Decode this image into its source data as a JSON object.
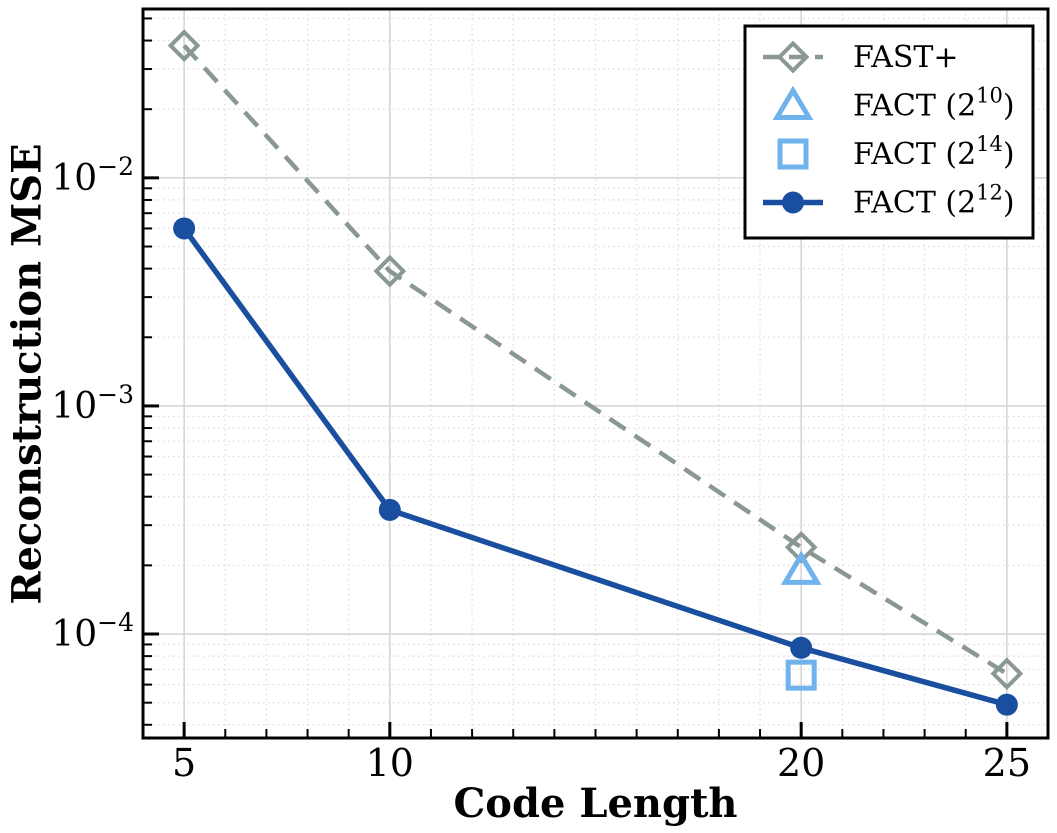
{
  "figure": {
    "background": "#ffffff",
    "frame_color": "#000000",
    "text_color": "#000000"
  },
  "chart_data": {
    "type": "line",
    "title": "",
    "xlabel": "Code Length",
    "ylabel": "Reconstruction MSE",
    "x_scale": "linear",
    "y_scale": "log",
    "xlim": [
      4,
      26
    ],
    "ylim": [
      3.5e-05,
      0.055
    ],
    "x_major_ticks": [
      5,
      10,
      20,
      25
    ],
    "x_minor_ticks": [
      6,
      7,
      8,
      9,
      11,
      12,
      13,
      14,
      15,
      16,
      17,
      18,
      19,
      21,
      22,
      23,
      24
    ],
    "y_major_tick_exponents": [
      -2,
      -3,
      -4
    ],
    "grid": {
      "major": true,
      "minor": true,
      "major_color": "#d6d6d6",
      "minor_color": "#dcdcdc",
      "minor_style": "dotted"
    },
    "legend": {
      "position": "upper right",
      "entries": [
        "FAST+",
        "FACT (2^10)",
        "FACT (2^14)",
        "FACT (2^12)"
      ]
    },
    "series": [
      {
        "name": "FAST+",
        "color": "#8A9894",
        "line_style": "dashed",
        "marker": "diamond-open",
        "x": [
          5,
          10,
          20,
          25
        ],
        "y": [
          0.038,
          0.0039,
          0.00024,
          6.7e-05
        ]
      },
      {
        "name": "FACT (2^10)",
        "color": "#6FB2EC",
        "line_style": "none",
        "marker": "triangle-open",
        "x": [
          20
        ],
        "y": [
          0.00019
        ]
      },
      {
        "name": "FACT (2^14)",
        "color": "#6FB2EC",
        "line_style": "none",
        "marker": "square-open",
        "x": [
          20
        ],
        "y": [
          6.6e-05
        ]
      },
      {
        "name": "FACT (2^12)",
        "color": "#1A4FA0",
        "line_style": "solid",
        "marker": "circle-filled",
        "x": [
          5,
          10,
          20,
          25
        ],
        "y": [
          0.006,
          0.00035,
          8.7e-05,
          4.9e-05
        ]
      }
    ]
  }
}
